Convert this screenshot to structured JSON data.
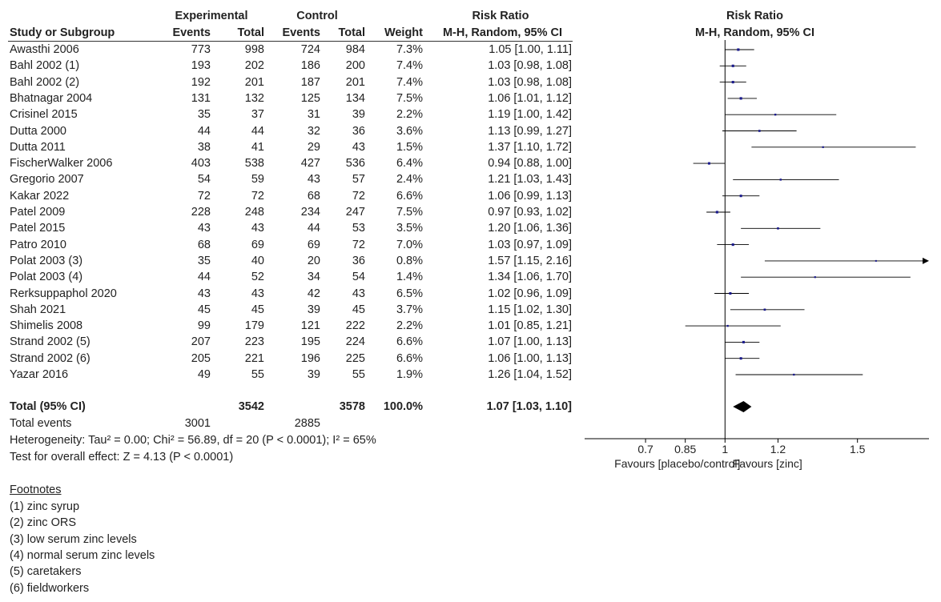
{
  "headers": {
    "experimental": "Experimental",
    "control": "Control",
    "risk_ratio": "Risk Ratio",
    "study": "Study or Subgroup",
    "events": "Events",
    "total": "Total",
    "events2": "Events",
    "total2": "Total",
    "weight": "Weight",
    "method": "M-H, Random, 95% CI",
    "plot_title": "Risk Ratio",
    "plot_method": "M-H, Random, 95% CI"
  },
  "studies": [
    {
      "name": "Awasthi 2006",
      "e_events": "773",
      "e_total": "998",
      "c_events": "724",
      "c_total": "984",
      "weight": "7.3%",
      "ci": "1.05 [1.00, 1.11]",
      "rr": 1.05,
      "lo": 1.0,
      "hi": 1.11
    },
    {
      "name": "Bahl 2002 (1)",
      "e_events": "193",
      "e_total": "202",
      "c_events": "186",
      "c_total": "200",
      "weight": "7.4%",
      "ci": "1.03 [0.98, 1.08]",
      "rr": 1.03,
      "lo": 0.98,
      "hi": 1.08
    },
    {
      "name": "Bahl 2002 (2)",
      "e_events": "192",
      "e_total": "201",
      "c_events": "187",
      "c_total": "201",
      "weight": "7.4%",
      "ci": "1.03 [0.98, 1.08]",
      "rr": 1.03,
      "lo": 0.98,
      "hi": 1.08
    },
    {
      "name": "Bhatnagar 2004",
      "e_events": "131",
      "e_total": "132",
      "c_events": "125",
      "c_total": "134",
      "weight": "7.5%",
      "ci": "1.06 [1.01, 1.12]",
      "rr": 1.06,
      "lo": 1.01,
      "hi": 1.12
    },
    {
      "name": "Crisinel 2015",
      "e_events": "35",
      "e_total": "37",
      "c_events": "31",
      "c_total": "39",
      "weight": "2.2%",
      "ci": "1.19 [1.00, 1.42]",
      "rr": 1.19,
      "lo": 1.0,
      "hi": 1.42
    },
    {
      "name": "Dutta 2000",
      "e_events": "44",
      "e_total": "44",
      "c_events": "32",
      "c_total": "36",
      "weight": "3.6%",
      "ci": "1.13 [0.99, 1.27]",
      "rr": 1.13,
      "lo": 0.99,
      "hi": 1.27
    },
    {
      "name": "Dutta 2011",
      "e_events": "38",
      "e_total": "41",
      "c_events": "29",
      "c_total": "43",
      "weight": "1.5%",
      "ci": "1.37 [1.10, 1.72]",
      "rr": 1.37,
      "lo": 1.1,
      "hi": 1.72
    },
    {
      "name": "FischerWalker 2006",
      "e_events": "403",
      "e_total": "538",
      "c_events": "427",
      "c_total": "536",
      "weight": "6.4%",
      "ci": "0.94 [0.88, 1.00]",
      "rr": 0.94,
      "lo": 0.88,
      "hi": 1.0
    },
    {
      "name": "Gregorio 2007",
      "e_events": "54",
      "e_total": "59",
      "c_events": "43",
      "c_total": "57",
      "weight": "2.4%",
      "ci": "1.21 [1.03, 1.43]",
      "rr": 1.21,
      "lo": 1.03,
      "hi": 1.43
    },
    {
      "name": "Kakar 2022",
      "e_events": "72",
      "e_total": "72",
      "c_events": "68",
      "c_total": "72",
      "weight": "6.6%",
      "ci": "1.06 [0.99, 1.13]",
      "rr": 1.06,
      "lo": 0.99,
      "hi": 1.13
    },
    {
      "name": "Patel 2009",
      "e_events": "228",
      "e_total": "248",
      "c_events": "234",
      "c_total": "247",
      "weight": "7.5%",
      "ci": "0.97 [0.93, 1.02]",
      "rr": 0.97,
      "lo": 0.93,
      "hi": 1.02
    },
    {
      "name": "Patel 2015",
      "e_events": "43",
      "e_total": "43",
      "c_events": "44",
      "c_total": "53",
      "weight": "3.5%",
      "ci": "1.20 [1.06, 1.36]",
      "rr": 1.2,
      "lo": 1.06,
      "hi": 1.36
    },
    {
      "name": "Patro 2010",
      "e_events": "68",
      "e_total": "69",
      "c_events": "69",
      "c_total": "72",
      "weight": "7.0%",
      "ci": "1.03 [0.97, 1.09]",
      "rr": 1.03,
      "lo": 0.97,
      "hi": 1.09
    },
    {
      "name": "Polat 2003 (3)",
      "e_events": "35",
      "e_total": "40",
      "c_events": "20",
      "c_total": "36",
      "weight": "0.8%",
      "ci": "1.57 [1.15, 2.16]",
      "rr": 1.57,
      "lo": 1.15,
      "hi": 2.16
    },
    {
      "name": "Polat 2003 (4)",
      "e_events": "44",
      "e_total": "52",
      "c_events": "34",
      "c_total": "54",
      "weight": "1.4%",
      "ci": "1.34 [1.06, 1.70]",
      "rr": 1.34,
      "lo": 1.06,
      "hi": 1.7
    },
    {
      "name": "Rerksuppaphol 2020",
      "e_events": "43",
      "e_total": "43",
      "c_events": "42",
      "c_total": "43",
      "weight": "6.5%",
      "ci": "1.02 [0.96, 1.09]",
      "rr": 1.02,
      "lo": 0.96,
      "hi": 1.09
    },
    {
      "name": "Shah 2021",
      "e_events": "45",
      "e_total": "45",
      "c_events": "39",
      "c_total": "45",
      "weight": "3.7%",
      "ci": "1.15 [1.02, 1.30]",
      "rr": 1.15,
      "lo": 1.02,
      "hi": 1.3
    },
    {
      "name": "Shimelis 2008",
      "e_events": "99",
      "e_total": "179",
      "c_events": "121",
      "c_total": "222",
      "weight": "2.2%",
      "ci": "1.01 [0.85, 1.21]",
      "rr": 1.01,
      "lo": 0.85,
      "hi": 1.21
    },
    {
      "name": "Strand 2002 (5)",
      "e_events": "207",
      "e_total": "223",
      "c_events": "195",
      "c_total": "224",
      "weight": "6.6%",
      "ci": "1.07 [1.00, 1.13]",
      "rr": 1.07,
      "lo": 1.0,
      "hi": 1.13
    },
    {
      "name": "Strand 2002 (6)",
      "e_events": "205",
      "e_total": "221",
      "c_events": "196",
      "c_total": "225",
      "weight": "6.6%",
      "ci": "1.06 [1.00, 1.13]",
      "rr": 1.06,
      "lo": 1.0,
      "hi": 1.13
    },
    {
      "name": "Yazar 2016",
      "e_events": "49",
      "e_total": "55",
      "c_events": "39",
      "c_total": "55",
      "weight": "1.9%",
      "ci": "1.26 [1.04, 1.52]",
      "rr": 1.26,
      "lo": 1.04,
      "hi": 1.52
    }
  ],
  "total": {
    "label": "Total (95% CI)",
    "e_total": "3542",
    "c_total": "3578",
    "weight": "100.0%",
    "ci": "1.07 [1.03, 1.10]",
    "rr": 1.07,
    "lo": 1.03,
    "hi": 1.1
  },
  "total_events": {
    "label": "Total events",
    "e": "3001",
    "c": "2885"
  },
  "heterogeneity": "Heterogeneity: Tau² = 0.00; Chi² = 56.89, df = 20 (P < 0.0001); I² = 65%",
  "overall_effect": "Test for overall effect: Z = 4.13 (P < 0.0001)",
  "footnotes": {
    "title": "Footnotes",
    "items": [
      "(1) zinc syrup",
      "(2) zinc ORS",
      "(3) low serum zinc levels",
      "(4) normal serum zinc levels",
      "(5) caretakers",
      "(6) fieldworkers"
    ]
  },
  "chart_data": {
    "type": "forest",
    "title": "Risk Ratio",
    "subtitle": "M-H, Random, 95% CI",
    "xlim": [
      0.47,
      1.77
    ],
    "xticks": [
      {
        "value": 0.7,
        "label": "0.7"
      },
      {
        "value": 0.85,
        "label": "0.85"
      },
      {
        "value": 1.0,
        "label": "1"
      },
      {
        "value": 1.2,
        "label": "1.2"
      },
      {
        "value": 1.5,
        "label": "1.5"
      }
    ],
    "reference_line": 1.0,
    "favours_left": "Favours [placebo/control]",
    "favours_right": "Favours [zinc]",
    "marker_color": "#1a1a8c"
  }
}
